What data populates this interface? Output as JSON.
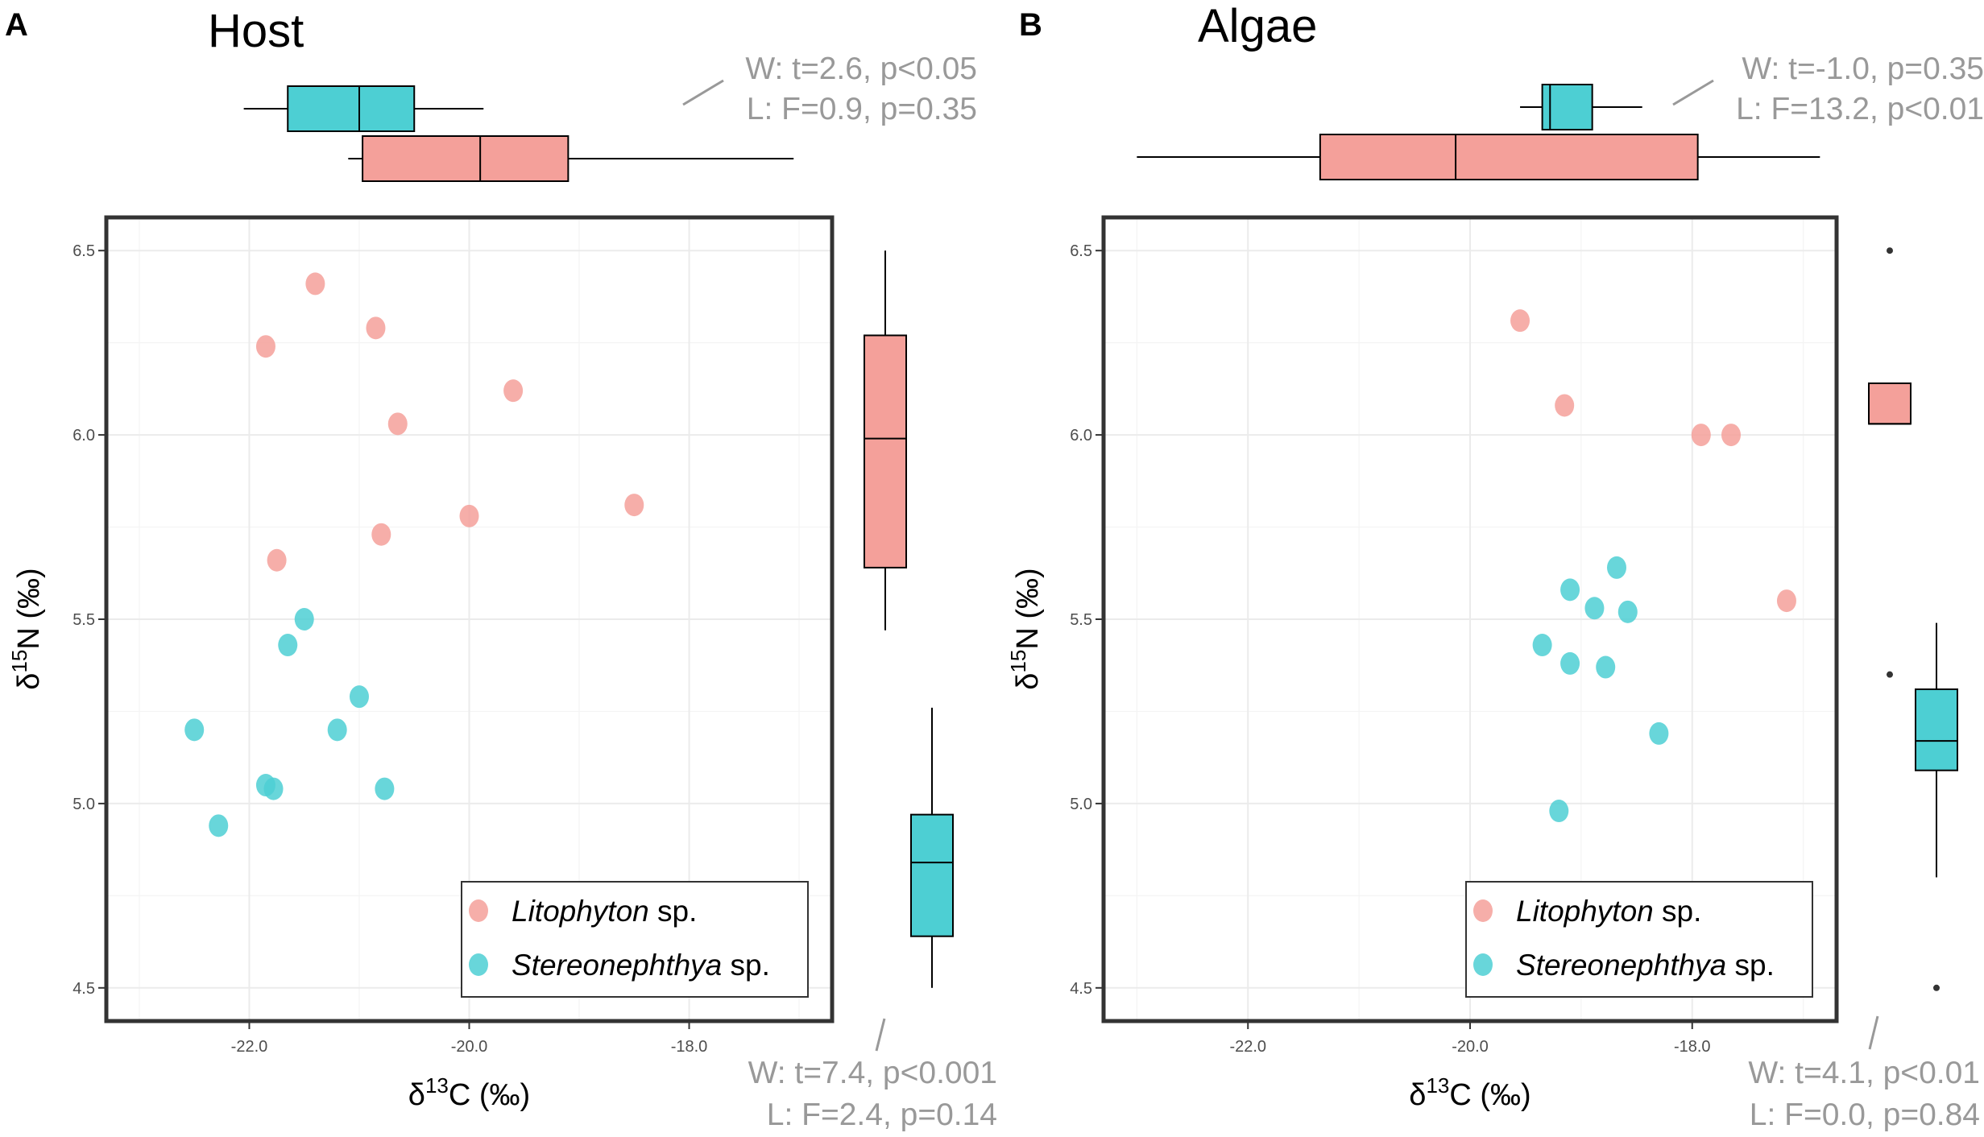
{
  "colors": {
    "litophyton": "#F4A09A",
    "stereonephthya": "#4DCFD3",
    "panel_border": "#333333",
    "grid": "#EBEBEB",
    "stats_text": "#999999"
  },
  "chart_data": [
    {
      "type": "scatter",
      "panel_label": "A",
      "title": "Host",
      "xlabel": "δ13C (‰)",
      "ylabel": "δ15N (‰)",
      "xlim": [
        -23.3,
        -16.7
      ],
      "ylim": [
        4.41,
        6.59
      ],
      "x_ticks": [
        -22.0,
        -20.0,
        -18.0
      ],
      "x_tick_labels": [
        "-22.0",
        "-20.0",
        "-18.0"
      ],
      "y_ticks": [
        4.5,
        5.0,
        5.5,
        6.0,
        6.5
      ],
      "y_tick_labels": [
        "4.5",
        "5.0",
        "5.5",
        "6.0",
        "6.5"
      ],
      "legend": [
        {
          "label": "Litophyton",
          "suffix": " sp."
        },
        {
          "label": "Stereonephthya",
          "suffix": " sp."
        }
      ],
      "series": [
        {
          "name": "Litophyton sp.",
          "x": [
            -21.4,
            -20.85,
            -21.85,
            -19.6,
            -20.65,
            -18.5,
            -20.0,
            -20.8,
            -21.75
          ],
          "y": [
            6.41,
            6.29,
            6.24,
            6.12,
            6.03,
            5.81,
            5.78,
            5.73,
            5.66
          ]
        },
        {
          "name": "Stereonephthya sp.",
          "x": [
            -21.5,
            -21.65,
            -21.0,
            -21.2,
            -22.5,
            -21.85,
            -21.78,
            -20.77,
            -22.28
          ],
          "y": [
            5.5,
            5.43,
            5.29,
            5.2,
            5.2,
            5.05,
            5.04,
            5.04,
            4.94
          ]
        }
      ],
      "marginal_x": [
        {
          "series": "Stereonephthya sp.",
          "whisker_low": -22.05,
          "q1": -21.65,
          "median": -21.0,
          "q3": -20.5,
          "whisker_high": -19.87
        },
        {
          "series": "Litophyton sp.",
          "whisker_low": -21.1,
          "q1": -20.97,
          "median": -19.9,
          "q3": -19.1,
          "whisker_high": -17.05
        }
      ],
      "marginal_y": [
        {
          "series": "Litophyton sp.",
          "whisker_low": 5.47,
          "q1": 5.64,
          "median": 5.99,
          "q3": 6.27,
          "whisker_high": 6.5,
          "outliers": []
        },
        {
          "series": "Stereonephthya sp.",
          "whisker_low": 4.5,
          "q1": 4.64,
          "median": 4.84,
          "q3": 4.97,
          "whisker_high": 5.26,
          "outliers": []
        }
      ],
      "stats_x": [
        "W: t=2.6, p<0.05",
        "L: F=0.9, p=0.35"
      ],
      "stats_y": [
        "W: t=7.4, p<0.001",
        "L: F=2.4, p=0.14"
      ]
    },
    {
      "type": "scatter",
      "panel_label": "B",
      "title": "Algae",
      "xlabel": "δ13C (‰)",
      "ylabel": "δ15N (‰)",
      "xlim": [
        -23.3,
        -16.7
      ],
      "ylim": [
        4.41,
        6.59
      ],
      "x_ticks": [
        -22.0,
        -20.0,
        -18.0
      ],
      "x_tick_labels": [
        "-22.0",
        "-20.0",
        "-18.0"
      ],
      "y_ticks": [
        4.5,
        5.0,
        5.5,
        6.0,
        6.5
      ],
      "y_tick_labels": [
        "4.5",
        "5.0",
        "5.5",
        "6.0",
        "6.5"
      ],
      "legend": [
        {
          "label": "Litophyton",
          "suffix": " sp."
        },
        {
          "label": "Stereonephthya",
          "suffix": " sp."
        }
      ],
      "series": [
        {
          "name": "Litophyton sp.",
          "x": [
            -19.55,
            -19.15,
            -17.92,
            -17.65,
            -17.15
          ],
          "y": [
            6.31,
            6.08,
            6.0,
            6.0,
            5.55
          ]
        },
        {
          "name": "Stereonephthya sp.",
          "x": [
            -18.68,
            -19.1,
            -18.88,
            -18.58,
            -19.35,
            -19.1,
            -18.78,
            -18.3,
            -19.2
          ],
          "y": [
            5.64,
            5.58,
            5.53,
            5.52,
            5.43,
            5.38,
            5.37,
            5.19,
            4.98
          ]
        }
      ],
      "marginal_x": [
        {
          "series": "Stereonephthya sp.",
          "whisker_low": -19.55,
          "q1": -19.35,
          "median": -19.28,
          "q3": -18.9,
          "whisker_high": -18.45
        },
        {
          "series": "Litophyton sp.",
          "whisker_low": -23.0,
          "q1": -21.35,
          "median": -20.13,
          "q3": -17.95,
          "whisker_high": -16.85
        }
      ],
      "marginal_y": [
        {
          "series": "Litophyton sp.",
          "whisker_low": 6.03,
          "q1": 6.03,
          "median": 6.03,
          "q3": 6.14,
          "whisker_high": 6.14,
          "outliers": [
            6.5,
            5.35
          ]
        },
        {
          "series": "Stereonephthya sp.",
          "whisker_low": 4.8,
          "q1": 5.09,
          "median": 5.17,
          "q3": 5.31,
          "whisker_high": 5.49,
          "outliers": [
            4.5
          ]
        }
      ],
      "stats_x": [
        "W: t=-1.0, p=0.35",
        "L: F=13.2, p<0.01"
      ],
      "stats_y": [
        "W: t=4.1, p<0.01",
        "L: F=0.0, p=0.84"
      ]
    }
  ]
}
